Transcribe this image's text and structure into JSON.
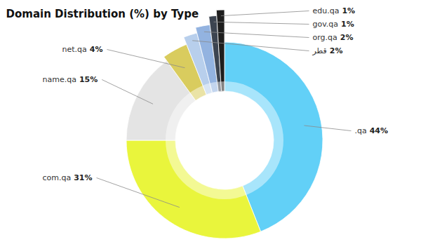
{
  "chart_data": {
    "type": "donut",
    "title": "Domain Distribution (%) by Type",
    "categories": [
      ".qa",
      "com.qa",
      "name.qa",
      "net.qa",
      "قطر",
      "org.qa",
      "gov.qa",
      "edu.qa"
    ],
    "values": [
      44,
      31,
      15,
      4,
      2,
      2,
      1,
      1
    ],
    "value_labels": [
      "44%",
      "31%",
      "15%",
      "4%",
      "2%",
      "2%",
      "1%",
      "1%"
    ],
    "colors": [
      "#62d0f7",
      "#e9f53c",
      "#e4e4e4",
      "#d9cc5e",
      "#b8cfec",
      "#93b3e0",
      "#3c4450",
      "#1e1e1e"
    ],
    "data_labels": true
  }
}
